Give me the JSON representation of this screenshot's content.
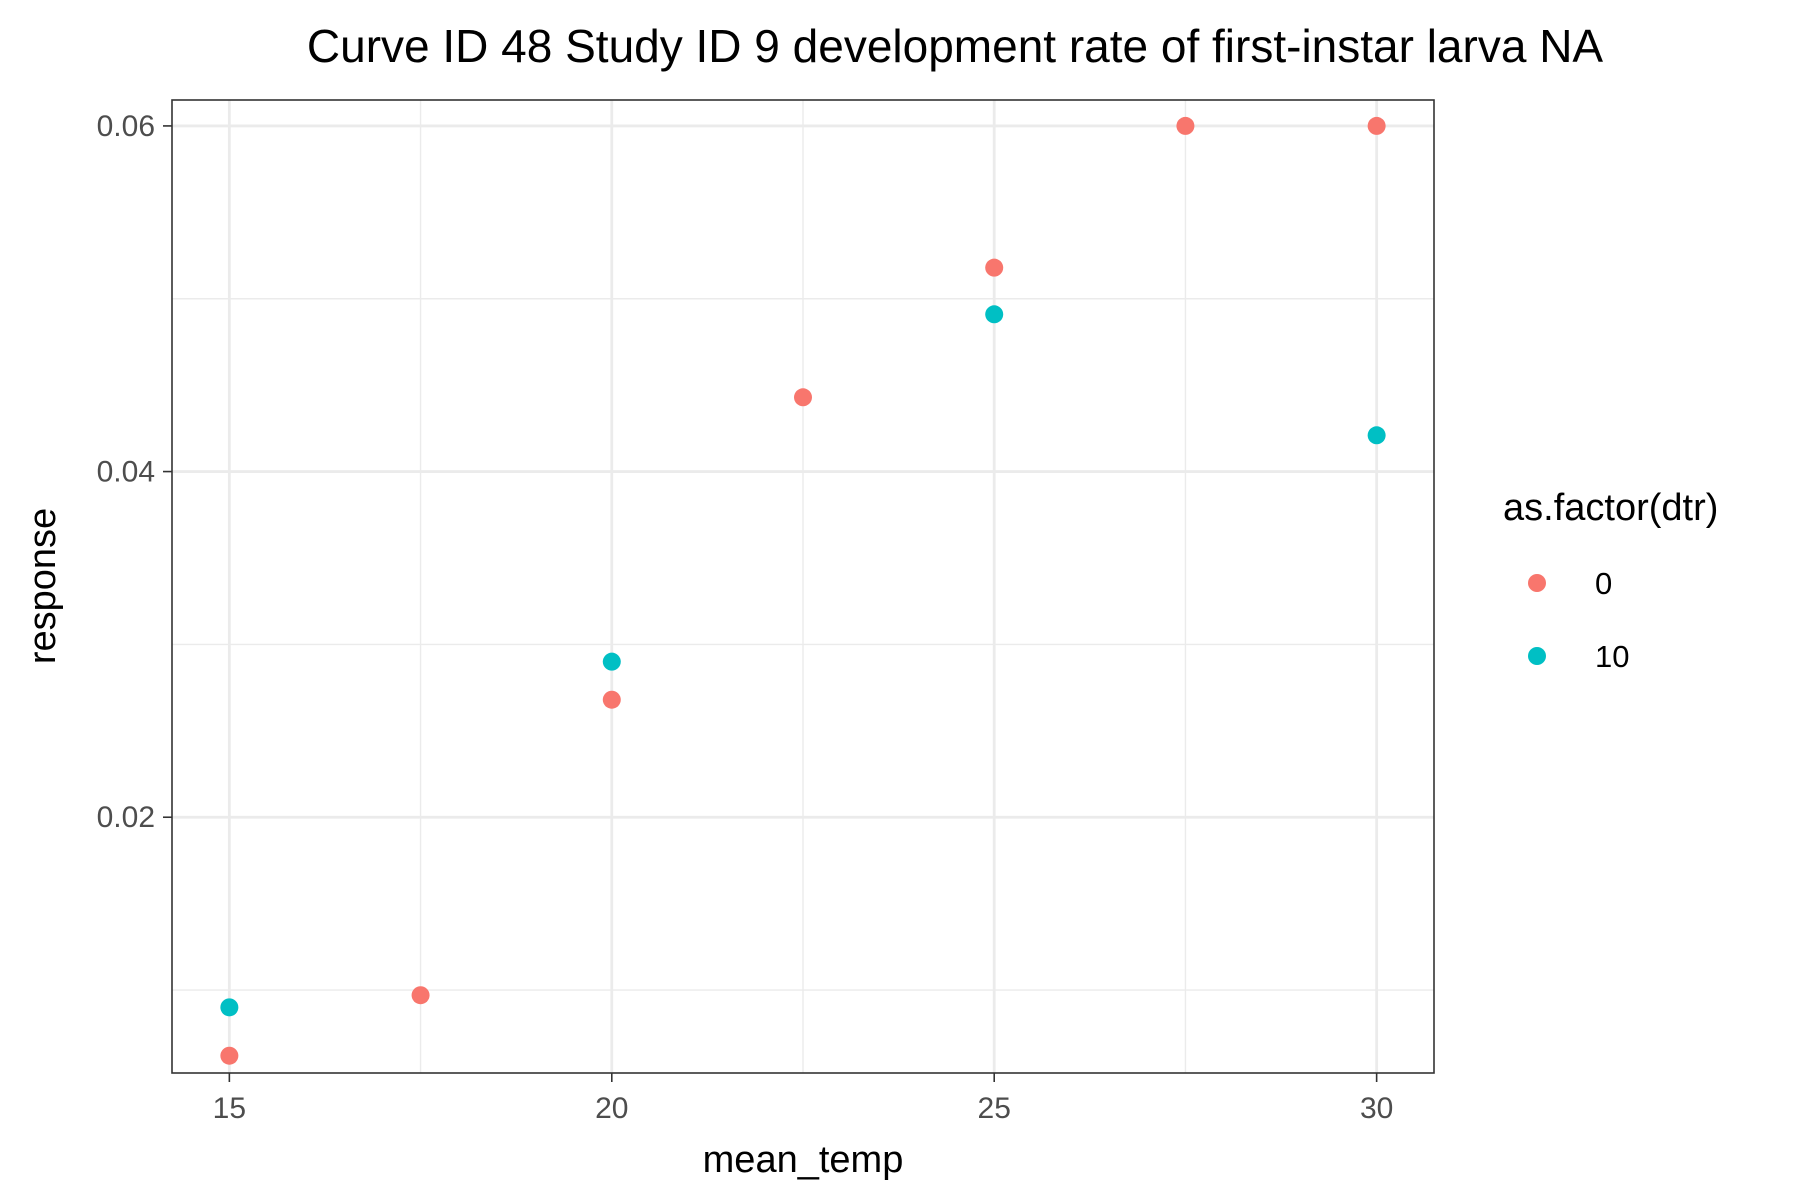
{
  "chart_data": {
    "type": "scatter",
    "title": "Curve ID 48 Study ID 9 development rate of first-instar larva NA",
    "xlabel": "mean_temp",
    "ylabel": "response",
    "xlim": [
      14.25,
      30.75
    ],
    "ylim": [
      0.0052,
      0.0615
    ],
    "x_ticks": [
      15,
      20,
      25,
      30
    ],
    "x_tick_labels": [
      "15",
      "20",
      "25",
      "30"
    ],
    "x_minor_ticks": [
      17.5,
      22.5,
      27.5
    ],
    "y_ticks": [
      0.02,
      0.04,
      0.06
    ],
    "y_tick_labels": [
      "0.02",
      "0.04",
      "0.06"
    ],
    "y_minor_ticks": [
      0.01,
      0.03,
      0.05
    ],
    "grid": true,
    "legend": {
      "title": "as.factor(dtr)",
      "placement": "right"
    },
    "series": [
      {
        "name": "0",
        "color": "#F8766D",
        "points": [
          {
            "x": 15,
            "y": 0.0062
          },
          {
            "x": 17.5,
            "y": 0.0097
          },
          {
            "x": 20,
            "y": 0.0268
          },
          {
            "x": 22.5,
            "y": 0.0443
          },
          {
            "x": 25,
            "y": 0.0518
          },
          {
            "x": 27.5,
            "y": 0.06
          },
          {
            "x": 30,
            "y": 0.06
          }
        ]
      },
      {
        "name": "10",
        "color": "#00BFC4",
        "points": [
          {
            "x": 15,
            "y": 0.009
          },
          {
            "x": 20,
            "y": 0.029
          },
          {
            "x": 25,
            "y": 0.0491
          },
          {
            "x": 30,
            "y": 0.0421
          }
        ]
      }
    ]
  }
}
